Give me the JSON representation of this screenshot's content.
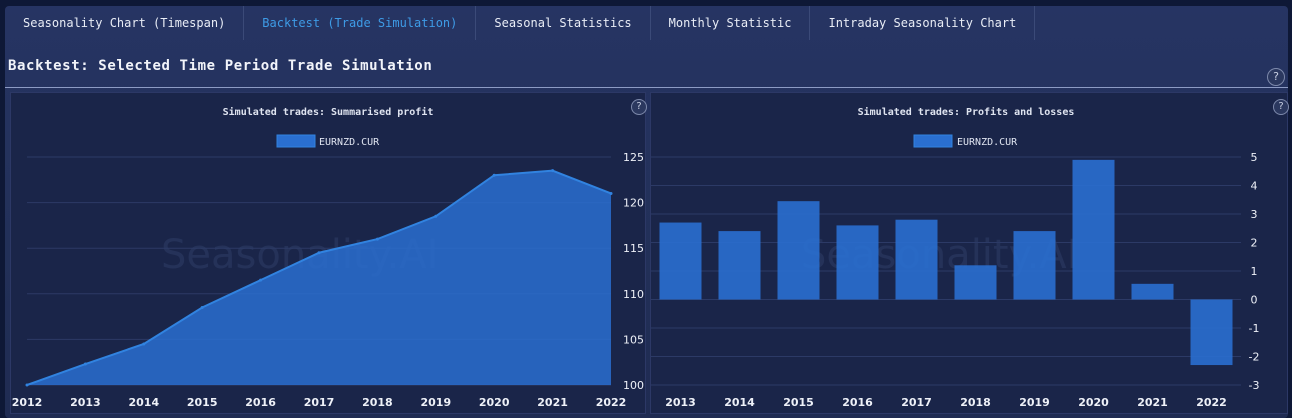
{
  "tabs": [
    {
      "label": "Seasonality Chart (Timespan)",
      "active": false
    },
    {
      "label": "Backtest (Trade Simulation)",
      "active": true
    },
    {
      "label": "Seasonal Statistics",
      "active": false
    },
    {
      "label": "Monthly Statistic",
      "active": false
    },
    {
      "label": "Intraday Seasonality Chart",
      "active": false
    }
  ],
  "section": {
    "title": "Backtest: Selected Time Period Trade Simulation",
    "help": "?"
  },
  "watermark": "Seasonality.AI",
  "colors": {
    "series": "#2a6fd0",
    "series_line": "#3183e0",
    "accent": "#3e9be6"
  },
  "chart_data": [
    {
      "type": "area",
      "title": "Simulated trades: Summarised profit",
      "help": "?",
      "series": [
        {
          "name": "EURNZD.CUR",
          "values": [
            100,
            102.3,
            104.5,
            108.5,
            111.5,
            114.5,
            116.0,
            118.5,
            123.0,
            123.5,
            121.0
          ]
        }
      ],
      "x": [
        "2012",
        "2013",
        "2014",
        "2015",
        "2016",
        "2017",
        "2018",
        "2019",
        "2020",
        "2021",
        "2022"
      ],
      "ylim": [
        100,
        125
      ],
      "yticks": [
        100,
        105,
        110,
        115,
        120,
        125
      ],
      "grid": true,
      "legend": "top-center"
    },
    {
      "type": "bar",
      "title": "Simulated trades: Profits and losses",
      "help": "?",
      "series": [
        {
          "name": "EURNZD.CUR",
          "values": [
            2.7,
            2.4,
            3.45,
            2.6,
            2.8,
            1.2,
            2.4,
            4.9,
            0.55,
            -2.3
          ]
        }
      ],
      "categories": [
        "2013",
        "2014",
        "2015",
        "2016",
        "2017",
        "2018",
        "2019",
        "2020",
        "2021",
        "2022"
      ],
      "ylim": [
        -3,
        5
      ],
      "yticks": [
        -3,
        -2,
        -1,
        0,
        1,
        2,
        3,
        4,
        5
      ],
      "grid": true,
      "legend": "top-center"
    }
  ]
}
